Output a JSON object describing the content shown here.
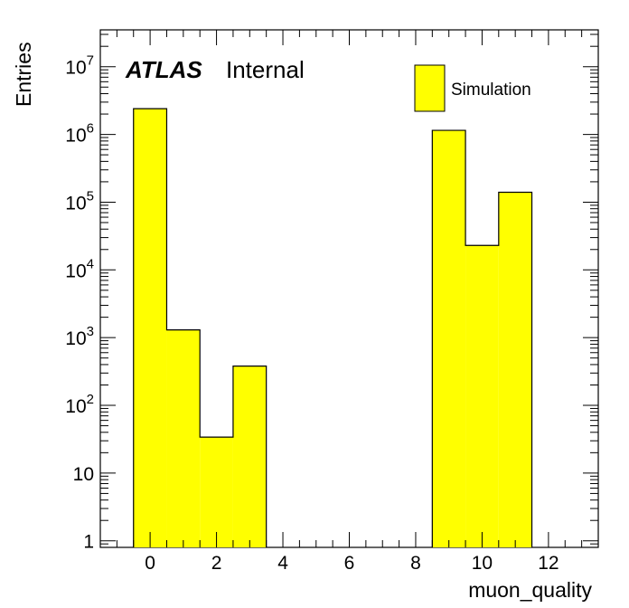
{
  "chart_data": {
    "type": "bar",
    "xlabel": "muon_quality",
    "ylabel": "Entries",
    "xlim": [
      -1.5,
      13.5
    ],
    "ylim": [
      0.8,
      35000000
    ],
    "log_y": true,
    "grid": false,
    "x_ticks": [
      "0",
      "2",
      "4",
      "6",
      "8",
      "10",
      "12"
    ],
    "y_ticks": [
      {
        "base": "1",
        "exp": ""
      },
      {
        "base": "10",
        "exp": ""
      },
      {
        "base": "10",
        "exp": "2"
      },
      {
        "base": "10",
        "exp": "3"
      },
      {
        "base": "10",
        "exp": "4"
      },
      {
        "base": "10",
        "exp": "5"
      },
      {
        "base": "10",
        "exp": "6"
      },
      {
        "base": "10",
        "exp": "7"
      }
    ],
    "bins": [
      {
        "center": 0,
        "value": 2400000
      },
      {
        "center": 1,
        "value": 1300
      },
      {
        "center": 2,
        "value": 34
      },
      {
        "center": 3,
        "value": 380
      },
      {
        "center": 9,
        "value": 1150000
      },
      {
        "center": 10,
        "value": 23000
      },
      {
        "center": 11,
        "value": 140000
      }
    ],
    "bin_width": 1,
    "fill_color": "#ffff00",
    "legend": {
      "entry": "Simulation",
      "position": "top-right"
    },
    "label_atlas": "ATLAS",
    "label_status": "Internal"
  }
}
